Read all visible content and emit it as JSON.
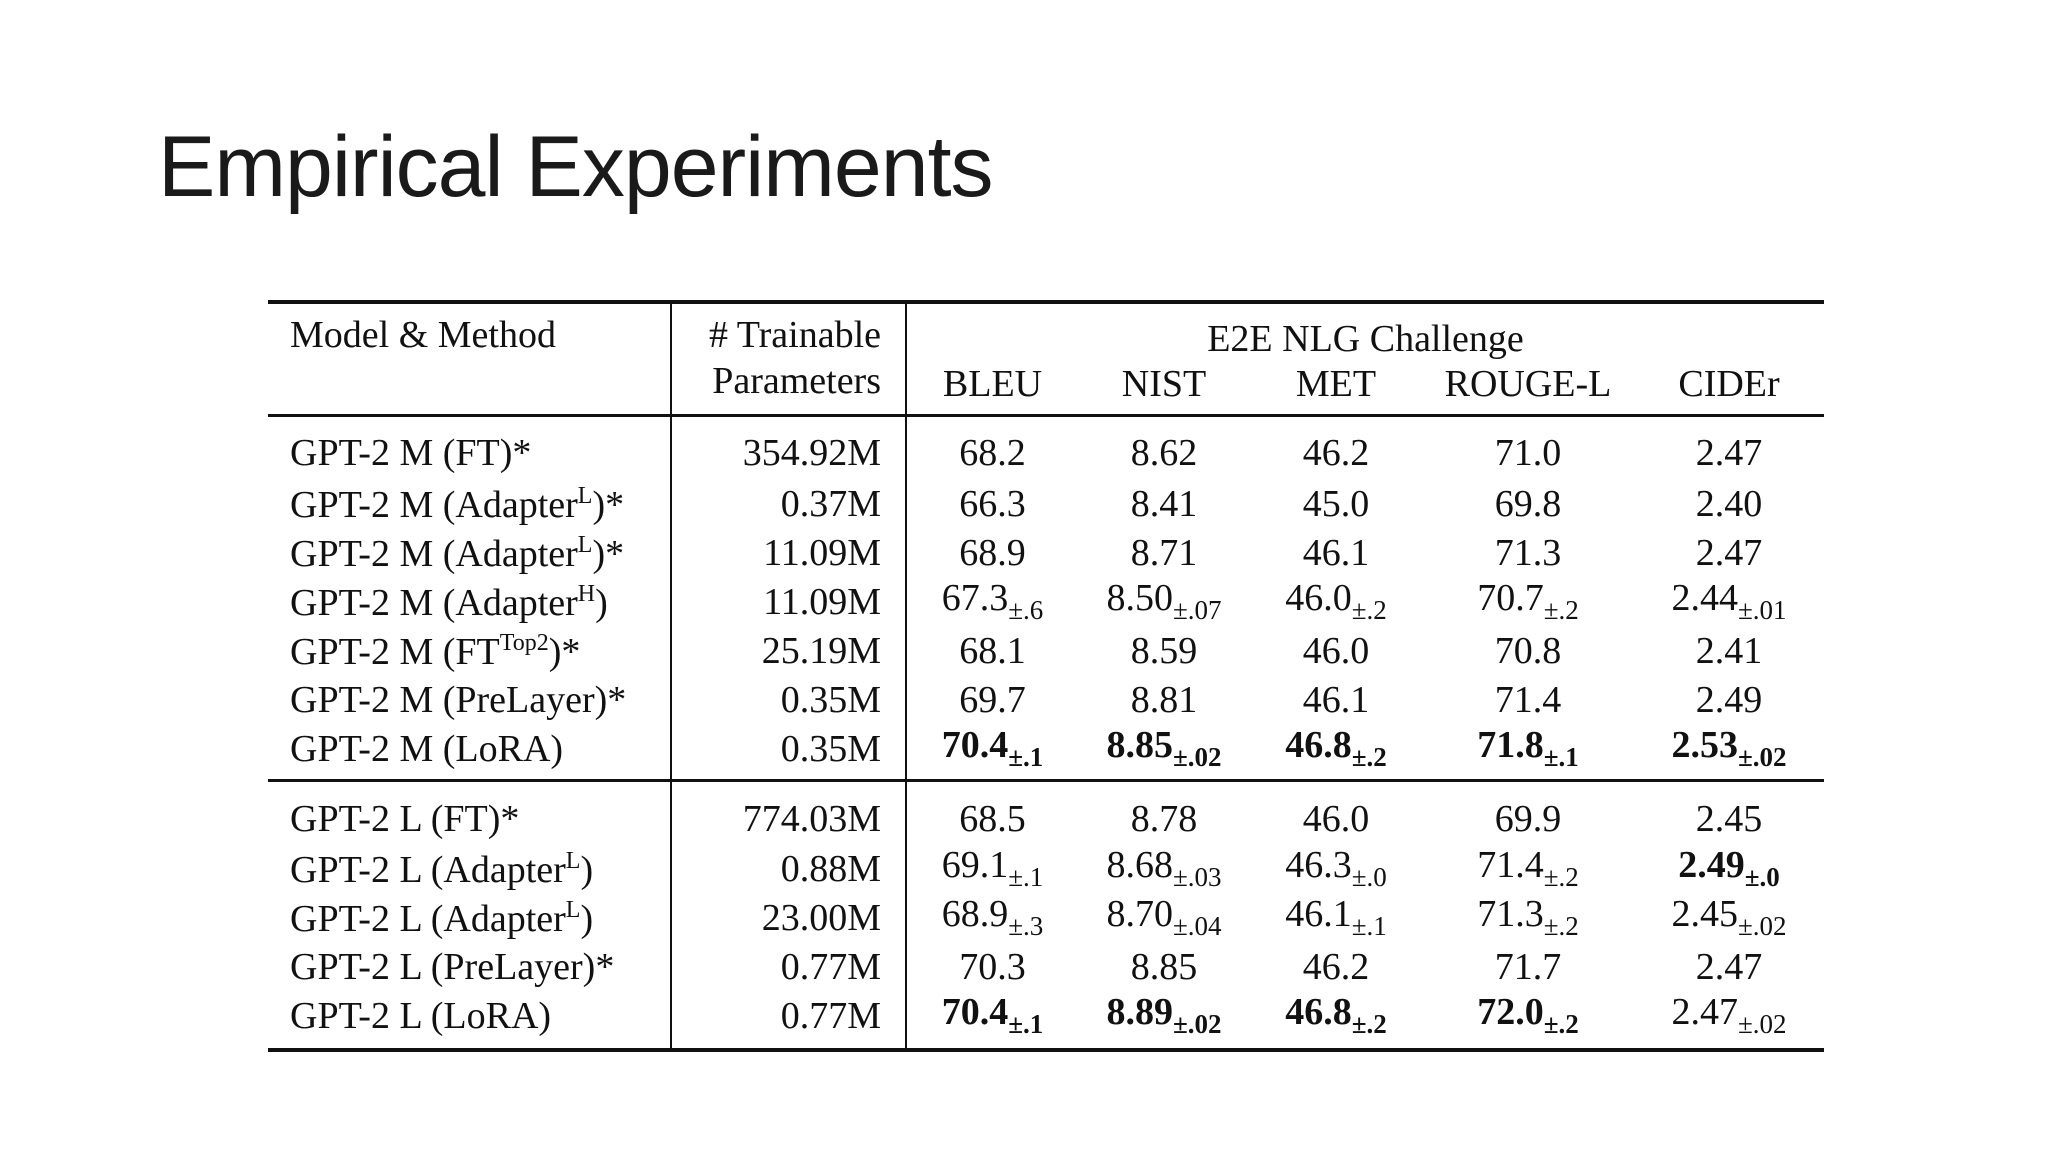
{
  "slide": {
    "title": "Empirical Experiments"
  },
  "table": {
    "headers": {
      "model": "Model & Method",
      "params_line1": "# Trainable",
      "params_line2": "Parameters",
      "group": "E2E NLG Challenge",
      "metrics": [
        "BLEU",
        "NIST",
        "MET",
        "ROUGE-L",
        "CIDEr"
      ]
    },
    "groups": [
      {
        "rows": [
          {
            "model": {
              "base": "GPT-2 M (FT",
              "sup": "",
              "tail": ")*"
            },
            "params": "354.92M",
            "cells": [
              {
                "v": "68.2",
                "pm": "",
                "bold": false
              },
              {
                "v": "8.62",
                "pm": "",
                "bold": false
              },
              {
                "v": "46.2",
                "pm": "",
                "bold": false
              },
              {
                "v": "71.0",
                "pm": "",
                "bold": false
              },
              {
                "v": "2.47",
                "pm": "",
                "bold": false
              }
            ]
          },
          {
            "model": {
              "base": "GPT-2 M (Adapter",
              "sup": "L",
              "tail": ")*"
            },
            "params": "0.37M",
            "cells": [
              {
                "v": "66.3",
                "pm": "",
                "bold": false
              },
              {
                "v": "8.41",
                "pm": "",
                "bold": false
              },
              {
                "v": "45.0",
                "pm": "",
                "bold": false
              },
              {
                "v": "69.8",
                "pm": "",
                "bold": false
              },
              {
                "v": "2.40",
                "pm": "",
                "bold": false
              }
            ]
          },
          {
            "model": {
              "base": "GPT-2 M (Adapter",
              "sup": "L",
              "tail": ")*"
            },
            "params": "11.09M",
            "cells": [
              {
                "v": "68.9",
                "pm": "",
                "bold": false
              },
              {
                "v": "8.71",
                "pm": "",
                "bold": false
              },
              {
                "v": "46.1",
                "pm": "",
                "bold": false
              },
              {
                "v": "71.3",
                "pm": "",
                "bold": false
              },
              {
                "v": "2.47",
                "pm": "",
                "bold": false
              }
            ]
          },
          {
            "model": {
              "base": "GPT-2 M (Adapter",
              "sup": "H",
              "tail": ")"
            },
            "params": "11.09M",
            "cells": [
              {
                "v": "67.3",
                "pm": "±.6",
                "bold": false
              },
              {
                "v": "8.50",
                "pm": "±.07",
                "bold": false
              },
              {
                "v": "46.0",
                "pm": "±.2",
                "bold": false
              },
              {
                "v": "70.7",
                "pm": "±.2",
                "bold": false
              },
              {
                "v": "2.44",
                "pm": "±.01",
                "bold": false
              }
            ]
          },
          {
            "model": {
              "base": "GPT-2 M (FT",
              "sup": "Top2",
              "tail": ")*"
            },
            "params": "25.19M",
            "cells": [
              {
                "v": "68.1",
                "pm": "",
                "bold": false
              },
              {
                "v": "8.59",
                "pm": "",
                "bold": false
              },
              {
                "v": "46.0",
                "pm": "",
                "bold": false
              },
              {
                "v": "70.8",
                "pm": "",
                "bold": false
              },
              {
                "v": "2.41",
                "pm": "",
                "bold": false
              }
            ]
          },
          {
            "model": {
              "base": "GPT-2 M (PreLayer)*",
              "sup": "",
              "tail": ""
            },
            "params": "0.35M",
            "cells": [
              {
                "v": "69.7",
                "pm": "",
                "bold": false
              },
              {
                "v": "8.81",
                "pm": "",
                "bold": false
              },
              {
                "v": "46.1",
                "pm": "",
                "bold": false
              },
              {
                "v": "71.4",
                "pm": "",
                "bold": false
              },
              {
                "v": "2.49",
                "pm": "",
                "bold": false
              }
            ]
          },
          {
            "model": {
              "base": "GPT-2 M (LoRA)",
              "sup": "",
              "tail": ""
            },
            "params": "0.35M",
            "cells": [
              {
                "v": "70.4",
                "pm": "±.1",
                "bold": true
              },
              {
                "v": "8.85",
                "pm": "±.02",
                "bold": true
              },
              {
                "v": "46.8",
                "pm": "±.2",
                "bold": true
              },
              {
                "v": "71.8",
                "pm": "±.1",
                "bold": true
              },
              {
                "v": "2.53",
                "pm": "±.02",
                "bold": true
              }
            ]
          }
        ]
      },
      {
        "rows": [
          {
            "model": {
              "base": "GPT-2 L (FT)*",
              "sup": "",
              "tail": ""
            },
            "params": "774.03M",
            "cells": [
              {
                "v": "68.5",
                "pm": "",
                "bold": false
              },
              {
                "v": "8.78",
                "pm": "",
                "bold": false
              },
              {
                "v": "46.0",
                "pm": "",
                "bold": false
              },
              {
                "v": "69.9",
                "pm": "",
                "bold": false
              },
              {
                "v": "2.45",
                "pm": "",
                "bold": false
              }
            ]
          },
          {
            "model": {
              "base": "GPT-2 L (Adapter",
              "sup": "L",
              "tail": ")"
            },
            "params": "0.88M",
            "cells": [
              {
                "v": "69.1",
                "pm": "±.1",
                "bold": false
              },
              {
                "v": "8.68",
                "pm": "±.03",
                "bold": false
              },
              {
                "v": "46.3",
                "pm": "±.0",
                "bold": false
              },
              {
                "v": "71.4",
                "pm": "±.2",
                "bold": false
              },
              {
                "v": "2.49",
                "pm": "±.0",
                "bold": true
              }
            ]
          },
          {
            "model": {
              "base": "GPT-2 L (Adapter",
              "sup": "L",
              "tail": ")"
            },
            "params": "23.00M",
            "cells": [
              {
                "v": "68.9",
                "pm": "±.3",
                "bold": false
              },
              {
                "v": "8.70",
                "pm": "±.04",
                "bold": false
              },
              {
                "v": "46.1",
                "pm": "±.1",
                "bold": false
              },
              {
                "v": "71.3",
                "pm": "±.2",
                "bold": false
              },
              {
                "v": "2.45",
                "pm": "±.02",
                "bold": false
              }
            ]
          },
          {
            "model": {
              "base": "GPT-2 L (PreLayer)*",
              "sup": "",
              "tail": ""
            },
            "params": "0.77M",
            "cells": [
              {
                "v": "70.3",
                "pm": "",
                "bold": false
              },
              {
                "v": "8.85",
                "pm": "",
                "bold": false
              },
              {
                "v": "46.2",
                "pm": "",
                "bold": false
              },
              {
                "v": "71.7",
                "pm": "",
                "bold": false
              },
              {
                "v": "2.47",
                "pm": "",
                "bold": false
              }
            ]
          },
          {
            "model": {
              "base": "GPT-2 L (LoRA)",
              "sup": "",
              "tail": ""
            },
            "params": "0.77M",
            "cells": [
              {
                "v": "70.4",
                "pm": "±.1",
                "bold": true
              },
              {
                "v": "8.89",
                "pm": "±.02",
                "bold": true
              },
              {
                "v": "46.8",
                "pm": "±.2",
                "bold": true
              },
              {
                "v": "72.0",
                "pm": "±.2",
                "bold": true
              },
              {
                "v": "2.47",
                "pm": "±.02",
                "bold": false
              }
            ]
          }
        ]
      }
    ]
  }
}
